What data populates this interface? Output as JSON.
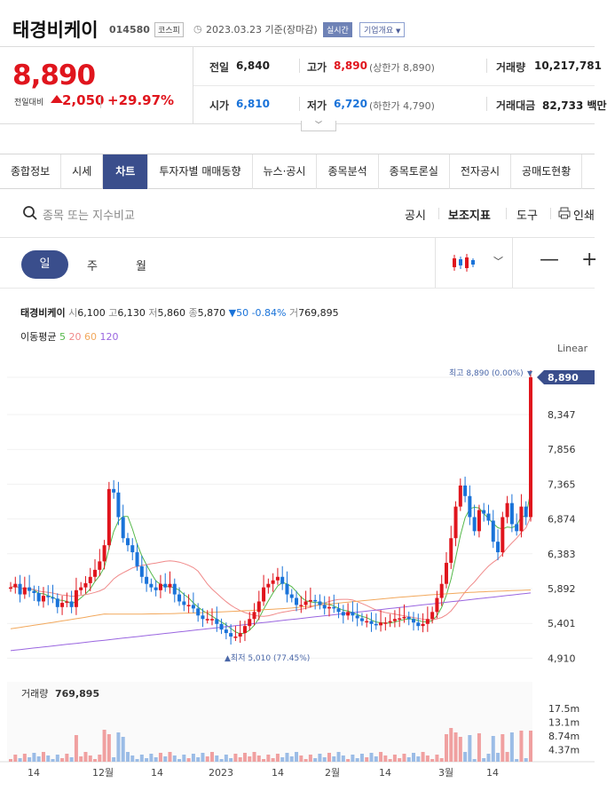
{
  "header": {
    "name": "태경비케이",
    "code": "014580",
    "market": "코스피",
    "date": "2023.03.23 기준(장마감)",
    "realtime": "실시간",
    "overview": "기업개요"
  },
  "price": {
    "current": "8,890",
    "compare_label": "전일대비",
    "change": "2,050",
    "pct": "+29.97%",
    "prev_label": "전일",
    "prev": "6,840",
    "high_label": "고가",
    "high": "8,890",
    "upper_limit": "(상한가 8,890)",
    "volume_label": "거래량",
    "volume": "10,217,781",
    "open_label": "시가",
    "open": "6,810",
    "low_label": "저가",
    "low": "6,720",
    "lower_limit": "(하한가 4,790)",
    "amount_label": "거래대금",
    "amount": "82,733 백만"
  },
  "tabs": [
    "종합정보",
    "시세",
    "차트",
    "투자자별 매매동향",
    "뉴스·공시",
    "종목분석",
    "종목토론실",
    "전자공시",
    "공매도현황"
  ],
  "search": {
    "placeholder": "종목 또는 지수비교",
    "tools": [
      "공시",
      "보조지표",
      "도구",
      "인쇄"
    ]
  },
  "periods": [
    "일",
    "주",
    "월"
  ],
  "zoom": [
    "—",
    "+"
  ],
  "info": {
    "name": "태경비케이",
    "open_l": "시",
    "open": "6,100",
    "high_l": "고",
    "high": "6,130",
    "low_l": "저",
    "low": "5,860",
    "close_l": "종",
    "close": "5,870",
    "change": "▼50 -0.84%",
    "vol_l": "거",
    "vol": "769,895"
  },
  "ma": {
    "label": "이동평균",
    "p5": "5",
    "p20": "20",
    "p60": "60",
    "p120": "120"
  },
  "colors": {
    "up": "#e0151d",
    "down": "#1a73d9",
    "ma5": "#55b84a",
    "ma20": "#f08a8a",
    "ma60": "#f2a85c",
    "ma120": "#9a66e0",
    "accent": "#3a4e8c"
  },
  "chart_data": {
    "type": "candlestick",
    "scale_label": "Linear",
    "price_ticks": [
      "8,347",
      "7,856",
      "7,365",
      "6,874",
      "6,383",
      "5,892",
      "5,401",
      "4,910"
    ],
    "current_tag": "8,890",
    "max_label": "최고 8,890 (0.00%)",
    "min_label": "▲최저 5,010 (77.45%)",
    "volume_label": "거래량",
    "volume_value": "769,895",
    "volume_ticks": [
      "17.5m",
      "13.1m",
      "8.74m",
      "4.37m"
    ],
    "x_labels": [
      "14",
      "12월",
      "14",
      "2023",
      "14",
      "2월",
      "14",
      "3월",
      "14"
    ],
    "ylim": [
      4910,
      8890
    ]
  }
}
